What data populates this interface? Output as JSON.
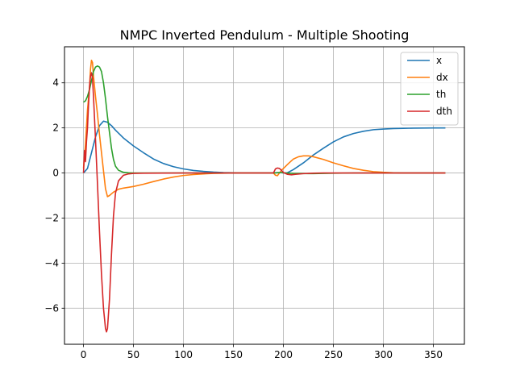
{
  "chart_data": {
    "type": "line",
    "title": "NMPC Inverted Pendulum - Multiple Shooting",
    "xlabel": "",
    "ylabel": "",
    "xlim": [
      -19,
      381
    ],
    "ylim": [
      -7.6,
      5.6
    ],
    "xticks": [
      0,
      50,
      100,
      150,
      200,
      250,
      300,
      350
    ],
    "yticks": [
      -6,
      -4,
      -2,
      0,
      2,
      4
    ],
    "grid": true,
    "legend_position": "top-right",
    "series": [
      {
        "name": "x",
        "color": "#1f77b4",
        "points": [
          [
            0,
            0
          ],
          [
            4,
            0.2
          ],
          [
            8,
            0.9
          ],
          [
            12,
            1.6
          ],
          [
            16,
            2.1
          ],
          [
            20,
            2.3
          ],
          [
            24,
            2.25
          ],
          [
            28,
            2.1
          ],
          [
            32,
            1.9
          ],
          [
            40,
            1.55
          ],
          [
            50,
            1.2
          ],
          [
            60,
            0.9
          ],
          [
            70,
            0.62
          ],
          [
            80,
            0.42
          ],
          [
            90,
            0.28
          ],
          [
            100,
            0.18
          ],
          [
            110,
            0.11
          ],
          [
            120,
            0.07
          ],
          [
            130,
            0.04
          ],
          [
            140,
            0.02
          ],
          [
            150,
            0.01
          ],
          [
            160,
            0
          ],
          [
            170,
            0
          ],
          [
            180,
            0
          ],
          [
            190,
            0
          ],
          [
            194,
            0.02
          ],
          [
            197,
            0.02
          ],
          [
            200,
            0
          ],
          [
            204,
            0.01
          ],
          [
            210,
            0.15
          ],
          [
            220,
            0.45
          ],
          [
            230,
            0.8
          ],
          [
            240,
            1.1
          ],
          [
            250,
            1.38
          ],
          [
            260,
            1.6
          ],
          [
            270,
            1.75
          ],
          [
            280,
            1.85
          ],
          [
            290,
            1.92
          ],
          [
            300,
            1.95
          ],
          [
            310,
            1.97
          ],
          [
            320,
            1.98
          ],
          [
            330,
            1.99
          ],
          [
            340,
            1.995
          ],
          [
            350,
            2.0
          ],
          [
            362,
            2.0
          ]
        ]
      },
      {
        "name": "dx",
        "color": "#ff7f0e",
        "points": [
          [
            0,
            0.2
          ],
          [
            2,
            1.3
          ],
          [
            4,
            2.8
          ],
          [
            6,
            3.8
          ],
          [
            7,
            4.6
          ],
          [
            8,
            5.0
          ],
          [
            9,
            4.9
          ],
          [
            10,
            4.3
          ],
          [
            12,
            3.4
          ],
          [
            14,
            2.6
          ],
          [
            16,
            1.7
          ],
          [
            18,
            0.9
          ],
          [
            20,
            0.1
          ],
          [
            22,
            -0.7
          ],
          [
            24,
            -1.05
          ],
          [
            26,
            -1.0
          ],
          [
            30,
            -0.85
          ],
          [
            35,
            -0.72
          ],
          [
            40,
            -0.67
          ],
          [
            50,
            -0.6
          ],
          [
            60,
            -0.5
          ],
          [
            70,
            -0.38
          ],
          [
            80,
            -0.27
          ],
          [
            90,
            -0.18
          ],
          [
            100,
            -0.11
          ],
          [
            110,
            -0.07
          ],
          [
            120,
            -0.04
          ],
          [
            130,
            -0.02
          ],
          [
            140,
            -0.01
          ],
          [
            150,
            0
          ],
          [
            180,
            0
          ],
          [
            190,
            0
          ],
          [
            192,
            -0.1
          ],
          [
            194,
            -0.12
          ],
          [
            196,
            0
          ],
          [
            198,
            0.12
          ],
          [
            200,
            0.2
          ],
          [
            205,
            0.42
          ],
          [
            210,
            0.62
          ],
          [
            215,
            0.72
          ],
          [
            220,
            0.76
          ],
          [
            225,
            0.76
          ],
          [
            230,
            0.72
          ],
          [
            240,
            0.6
          ],
          [
            250,
            0.45
          ],
          [
            260,
            0.32
          ],
          [
            270,
            0.2
          ],
          [
            280,
            0.12
          ],
          [
            290,
            0.06
          ],
          [
            300,
            0.03
          ],
          [
            310,
            0.01
          ],
          [
            320,
            0
          ],
          [
            362,
            0
          ]
        ]
      },
      {
        "name": "th",
        "color": "#2ca02c",
        "points": [
          [
            0,
            3.14
          ],
          [
            2,
            3.2
          ],
          [
            4,
            3.4
          ],
          [
            6,
            3.7
          ],
          [
            8,
            4.1
          ],
          [
            10,
            4.5
          ],
          [
            12,
            4.7
          ],
          [
            14,
            4.75
          ],
          [
            16,
            4.7
          ],
          [
            18,
            4.5
          ],
          [
            20,
            4.0
          ],
          [
            22,
            3.3
          ],
          [
            24,
            2.5
          ],
          [
            26,
            1.8
          ],
          [
            28,
            1.1
          ],
          [
            30,
            0.6
          ],
          [
            32,
            0.3
          ],
          [
            35,
            0.12
          ],
          [
            40,
            0.03
          ],
          [
            45,
            0.01
          ],
          [
            50,
            0
          ],
          [
            60,
            0
          ],
          [
            100,
            0
          ],
          [
            150,
            0
          ],
          [
            190,
            0
          ],
          [
            194,
            0.01
          ],
          [
            198,
            0.02
          ],
          [
            202,
            0.0
          ],
          [
            210,
            -0.02
          ],
          [
            230,
            -0.03
          ],
          [
            250,
            -0.01
          ],
          [
            270,
            0
          ],
          [
            362,
            0
          ]
        ]
      },
      {
        "name": "dth",
        "color": "#d62728",
        "points": [
          [
            0,
            0
          ],
          [
            1,
            1.0
          ],
          [
            2,
            0.5
          ],
          [
            3,
            1.4
          ],
          [
            4,
            2.0
          ],
          [
            5,
            3.0
          ],
          [
            6,
            3.8
          ],
          [
            7,
            4.3
          ],
          [
            8,
            4.45
          ],
          [
            9,
            4.2
          ],
          [
            10,
            3.4
          ],
          [
            12,
            1.5
          ],
          [
            14,
            -0.5
          ],
          [
            16,
            -2.6
          ],
          [
            18,
            -4.5
          ],
          [
            20,
            -6.0
          ],
          [
            22,
            -6.9
          ],
          [
            23,
            -7.05
          ],
          [
            24,
            -6.9
          ],
          [
            26,
            -5.6
          ],
          [
            28,
            -3.6
          ],
          [
            30,
            -1.9
          ],
          [
            32,
            -0.9
          ],
          [
            35,
            -0.35
          ],
          [
            40,
            -0.1
          ],
          [
            45,
            -0.04
          ],
          [
            50,
            -0.02
          ],
          [
            60,
            -0.01
          ],
          [
            100,
            0
          ],
          [
            150,
            0
          ],
          [
            190,
            0
          ],
          [
            192,
            0.18
          ],
          [
            194,
            0.22
          ],
          [
            196,
            0.2
          ],
          [
            198,
            0.12
          ],
          [
            200,
            0.02
          ],
          [
            204,
            -0.06
          ],
          [
            208,
            -0.08
          ],
          [
            212,
            -0.06
          ],
          [
            220,
            -0.03
          ],
          [
            230,
            -0.01
          ],
          [
            240,
            0
          ],
          [
            362,
            0
          ]
        ]
      }
    ]
  }
}
